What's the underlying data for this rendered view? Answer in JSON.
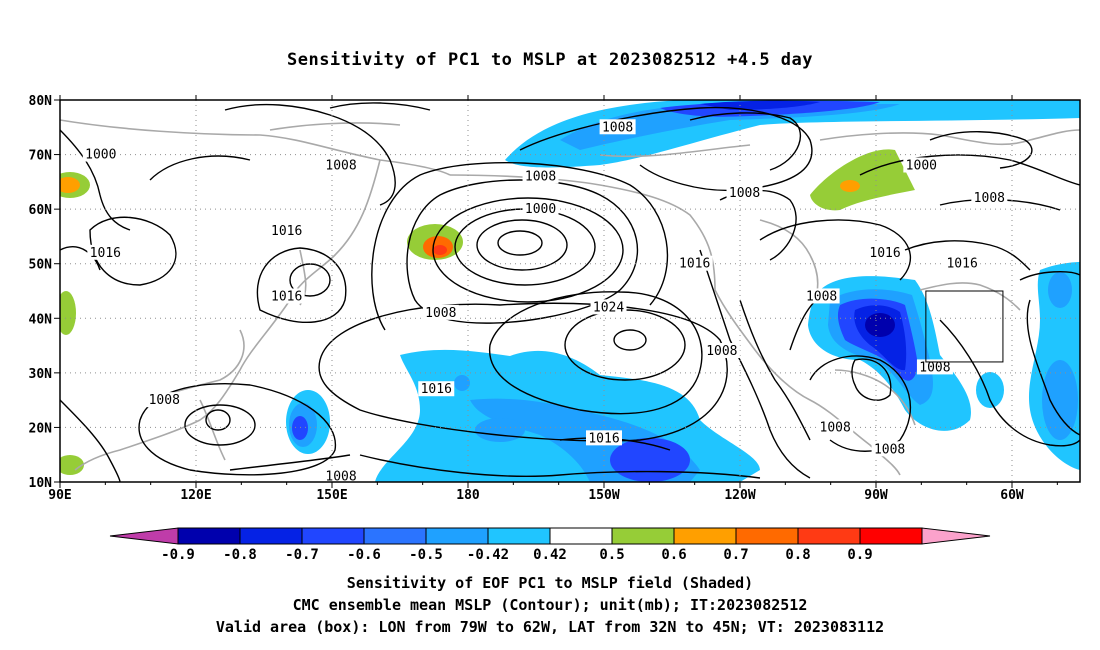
{
  "title": "Sensitivity of PC1 to MSLP at 2023082512 +4.5 day",
  "lat_labels": [
    "80N",
    "70N",
    "60N",
    "50N",
    "40N",
    "30N",
    "20N",
    "10N"
  ],
  "lon_labels": [
    "90E",
    "120E",
    "150E",
    "180",
    "150W",
    "120W",
    "90W",
    "60W"
  ],
  "contour_labels": [
    {
      "text": "1000",
      "lon": 99,
      "lat": 70
    },
    {
      "text": "1008",
      "lon": 152,
      "lat": 68
    },
    {
      "text": "1008",
      "lon": 213,
      "lat": 75
    },
    {
      "text": "1008",
      "lon": 196,
      "lat": 66
    },
    {
      "text": "1000",
      "lon": 196,
      "lat": 60
    },
    {
      "text": "1016",
      "lon": 140,
      "lat": 56
    },
    {
      "text": "1016",
      "lon": 100,
      "lat": 52
    },
    {
      "text": "1016",
      "lon": 140,
      "lat": 44
    },
    {
      "text": "1016",
      "lon": 230,
      "lat": 50
    },
    {
      "text": "1008",
      "lon": 174,
      "lat": 41
    },
    {
      "text": "1024",
      "lon": 211,
      "lat": 42
    },
    {
      "text": "1008",
      "lon": 241,
      "lat": 63
    },
    {
      "text": "1008",
      "lon": 258,
      "lat": 44
    },
    {
      "text": "1008",
      "lon": 236,
      "lat": 34
    },
    {
      "text": "1016",
      "lon": 173,
      "lat": 27
    },
    {
      "text": "1016",
      "lon": 272,
      "lat": 52
    },
    {
      "text": "1000",
      "lon": 280,
      "lat": 68
    },
    {
      "text": "1008",
      "lon": 295,
      "lat": 62
    },
    {
      "text": "1016",
      "lon": 289,
      "lat": 50
    },
    {
      "text": "1008",
      "lon": 113,
      "lat": 25
    },
    {
      "text": "1008",
      "lon": 152,
      "lat": 11
    },
    {
      "text": "1016",
      "lon": 210,
      "lat": 18
    },
    {
      "text": "1008",
      "lon": 261,
      "lat": 20
    },
    {
      "text": "1008",
      "lon": 273,
      "lat": 16
    },
    {
      "text": "1008",
      "lon": 283,
      "lat": 31
    }
  ],
  "valid_box": {
    "lon_min": 281,
    "lon_max": 298,
    "lat_min": 32,
    "lat_max": 45
  },
  "colorbar": {
    "colors": [
      "#bf3ca9",
      "#0000ad",
      "#0522e5",
      "#2146ff",
      "#2b74ff",
      "#1fa1ff",
      "#20c5ff",
      "#ffffff",
      "#96cd37",
      "#ff9f00",
      "#ff6a00",
      "#ff3a14",
      "#ff0000",
      "#fba2cb"
    ],
    "labels": [
      "-0.9",
      "-0.8",
      "-0.7",
      "-0.6",
      "-0.5",
      "-0.42",
      "0.42",
      "0.5",
      "0.6",
      "0.7",
      "0.8",
      "0.9"
    ]
  },
  "caption": {
    "line1": "Sensitivity of EOF PC1 to MSLP field (Shaded)",
    "line2": "CMC ensemble mean MSLP (Contour); unit(mb); IT:2023082512",
    "line3": "Valid area (box): LON from 79W to 62W, LAT from 32N to 45N; VT: 2023083112"
  }
}
